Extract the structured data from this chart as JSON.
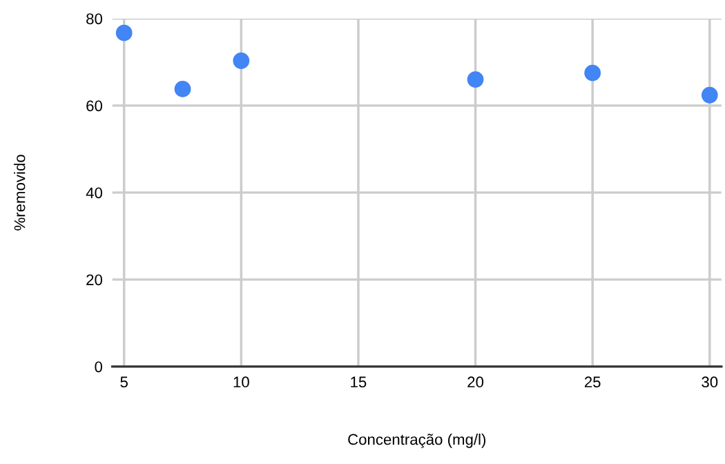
{
  "chart_data": {
    "type": "scatter",
    "xlabel": "Concentração (mg/l)",
    "ylabel": "%removido",
    "x": [
      5,
      7.5,
      10,
      20,
      25,
      30
    ],
    "series": [
      {
        "color": "#4285f4",
        "values": [
          76.7,
          63.8,
          70.3,
          66.0,
          67.5,
          62.4
        ]
      }
    ],
    "xlim": [
      4.5,
      30.5
    ],
    "ylim": [
      0,
      80
    ],
    "xticks": [
      5,
      10,
      15,
      20,
      25,
      30
    ],
    "yticks": [
      0,
      20,
      40,
      60,
      80
    ],
    "grid": true,
    "marker": "circle",
    "legend": false
  }
}
